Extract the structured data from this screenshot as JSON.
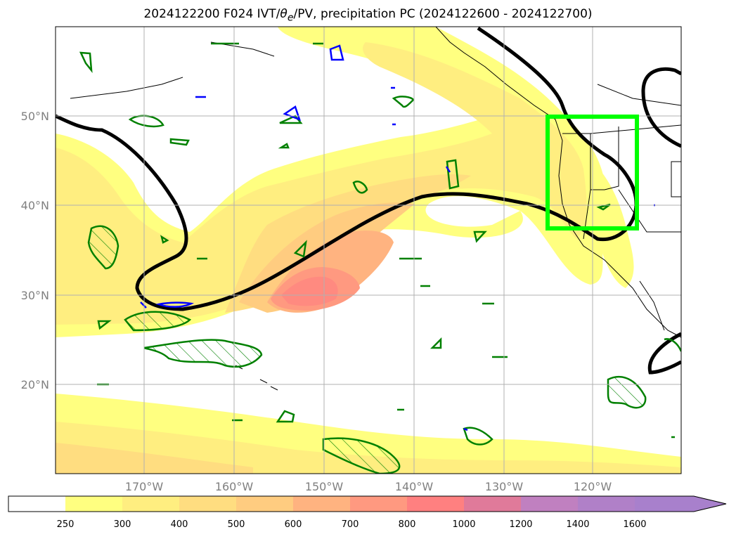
{
  "map": {
    "title_text": "2024122200 F024 IVT/",
    "title_symbol": "θ",
    "title_symbol_sub": "e",
    "title_rest": "/PV, precipitation PC (2024122600 - 2024122700)",
    "lat_labels": [
      "50°N",
      "40°N",
      "30°N",
      "20°N"
    ],
    "lon_labels": [
      "170°W",
      "160°W",
      "150°W",
      "140°W",
      "130°W",
      "120°W"
    ],
    "highlight_color": "#00ff00",
    "contour_color": "#000000",
    "pv_color": "#008000",
    "theta_color": "#0000ff"
  },
  "colorbar": {
    "ticks": [
      "250",
      "300",
      "400",
      "500",
      "600",
      "700",
      "800",
      "1000",
      "1200",
      "1400",
      "1600"
    ],
    "colors": [
      "#ffffff",
      "#ffff80",
      "#ffee80",
      "#ffdd80",
      "#ffcc80",
      "#ffb380",
      "#ff9980",
      "#ff8080",
      "#e07a9a",
      "#c080c0",
      "#a880cc"
    ]
  }
}
